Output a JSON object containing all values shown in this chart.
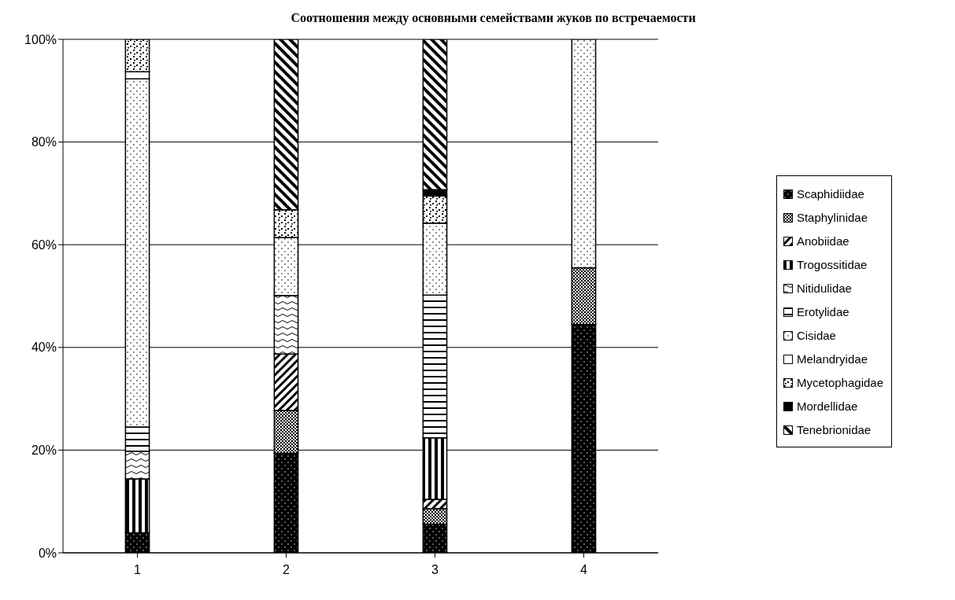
{
  "chart_data": {
    "type": "bar",
    "stacked": true,
    "title": "Соотношения между основными семействами жуков по встречаемости",
    "categories": [
      "1",
      "2",
      "3",
      "4"
    ],
    "series": [
      {
        "name": "Scaphidiidae",
        "color": "#000000",
        "values": [
          3.9,
          19.4,
          5.6,
          44.5
        ]
      },
      {
        "name": "Staphylinidae",
        "color": "#000000",
        "values": [
          0,
          8.3,
          3.0,
          11.0
        ]
      },
      {
        "name": "Anobiidae",
        "color": "#000000",
        "values": [
          0,
          11.0,
          1.8,
          0
        ]
      },
      {
        "name": "Trogossitidae",
        "color": "#000000",
        "values": [
          10.5,
          0,
          12.0,
          0
        ]
      },
      {
        "name": "Nitidulidae",
        "color": "#000000",
        "values": [
          5.4,
          11.4,
          0,
          0
        ]
      },
      {
        "name": "Erotylidae",
        "color": "#000000",
        "values": [
          4.7,
          0,
          27.8,
          0
        ]
      },
      {
        "name": "Cisidae",
        "color": "#000000",
        "values": [
          67.8,
          11.3,
          14.0,
          44.5
        ]
      },
      {
        "name": "Melandryidae",
        "color": "#000000",
        "values": [
          1.4,
          0,
          0,
          0
        ]
      },
      {
        "name": "Mycetophagidae",
        "color": "#000000",
        "values": [
          6.3,
          5.4,
          5.3,
          0
        ]
      },
      {
        "name": "Mordellidae",
        "color": "#000000",
        "values": [
          0,
          0,
          1.2,
          0
        ]
      },
      {
        "name": "Tenebrionidae",
        "color": "#000000",
        "values": [
          0,
          33.2,
          29.3,
          0
        ]
      }
    ],
    "ylim": [
      0,
      100
    ],
    "yticks": [
      {
        "value": 0,
        "label": "0%"
      },
      {
        "value": 20,
        "label": "20%"
      },
      {
        "value": 40,
        "label": "40%"
      },
      {
        "value": 60,
        "label": "60%"
      },
      {
        "value": 80,
        "label": "80%"
      },
      {
        "value": 100,
        "label": "100%"
      }
    ],
    "grid": "y",
    "legend": "right"
  }
}
